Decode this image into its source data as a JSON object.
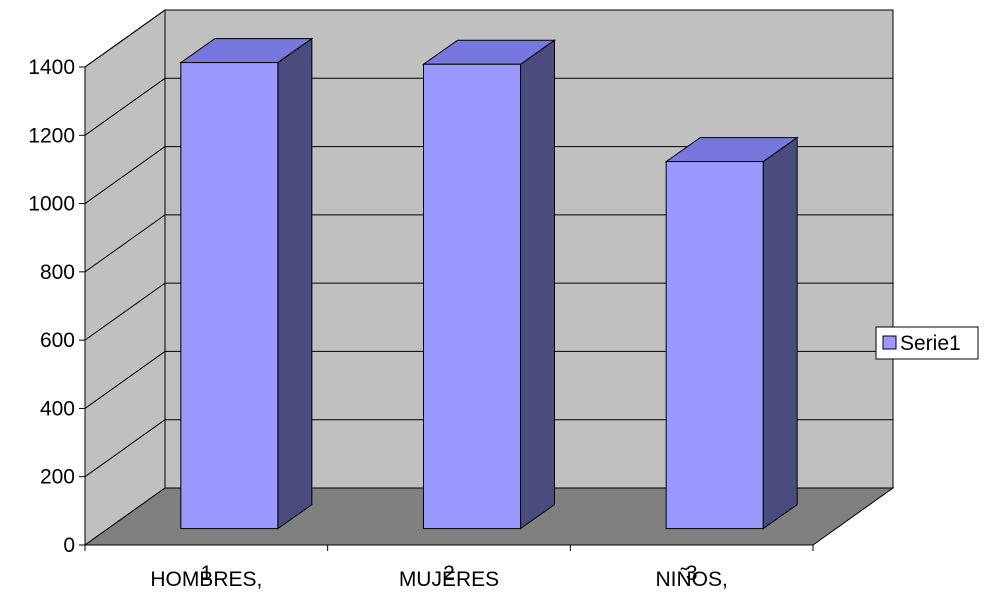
{
  "chart_data": {
    "type": "bar",
    "style": "3d-column",
    "categories": [
      "1",
      "2",
      "3"
    ],
    "category_sublabels": [
      "HOMBRES,",
      "MUJERES",
      "NIÑOS,"
    ],
    "series": [
      {
        "name": "Serie1",
        "values": [
          1365,
          1360,
          1075
        ]
      }
    ],
    "y_ticks": [
      "0",
      "200",
      "400",
      "600",
      "800",
      "1000",
      "1200",
      "1400"
    ],
    "ylim": [
      0,
      1400
    ],
    "grid": true,
    "legend_position": "right",
    "colors": {
      "bar_front": "#9999FF",
      "bar_top": "#7777DD",
      "bar_side": "#4B4B7E",
      "back_wall": "#C0C0C0",
      "side_wall": "#C0C0C0",
      "floor": "#808080"
    }
  }
}
